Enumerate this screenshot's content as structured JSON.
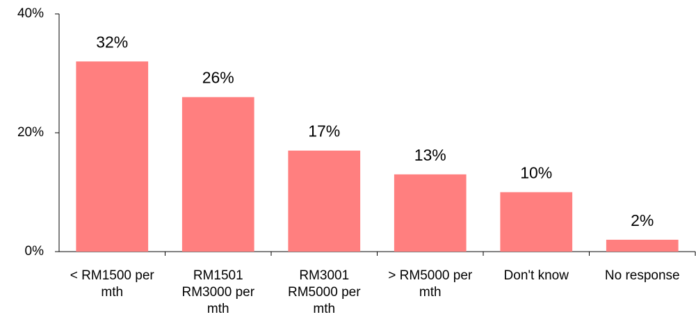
{
  "chart_data": {
    "type": "bar",
    "categories": [
      "< RM1500 per mth",
      "RM1501 RM3000 per mth",
      "RM3001 RM5000 per mth",
      "> RM5000 per mth",
      "Don't know",
      "No response"
    ],
    "values": [
      32,
      26,
      17,
      13,
      10,
      2
    ],
    "value_labels": [
      "32%",
      "26%",
      "17%",
      "13%",
      "10%",
      "2%"
    ],
    "color": "#ff7f7f",
    "ylim": [
      0,
      40
    ],
    "yticks": [
      {
        "value": 0,
        "label": "0%"
      },
      {
        "value": 20,
        "label": "20%"
      },
      {
        "value": 40,
        "label": "40%"
      }
    ],
    "grid": false
  }
}
